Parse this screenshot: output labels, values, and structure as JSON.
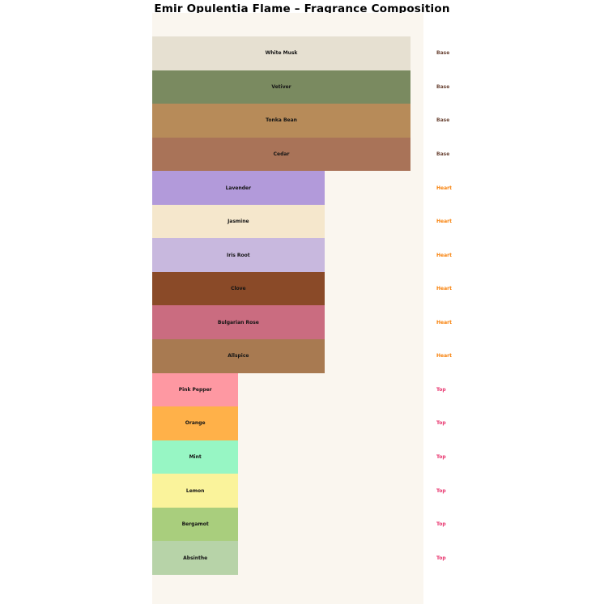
{
  "chart_data": {
    "type": "bar",
    "orientation": "horizontal",
    "title": "Emir Opulentia Flame – Fragrance Composition",
    "xlabel": "",
    "ylabel": "",
    "xlim": [
      0,
      3.15
    ],
    "grid": false,
    "legend": "none",
    "plot_background": "#FAF6EF",
    "figure_background": "#FFFFFF",
    "category_colors": {
      "Base": "#6B4536",
      "Heart": "#F8810A",
      "Top": "#E8336D"
    },
    "bars": [
      {
        "note": "White Musk",
        "category": "Base",
        "value": 3,
        "color": "#E6E0D1"
      },
      {
        "note": "Vetiver",
        "category": "Base",
        "value": 3,
        "color": "#7A8A60"
      },
      {
        "note": "Tonka Bean",
        "category": "Base",
        "value": 3,
        "color": "#B78B59"
      },
      {
        "note": "Cedar",
        "category": "Base",
        "value": 3,
        "color": "#A97358"
      },
      {
        "note": "Lavender",
        "category": "Heart",
        "value": 2,
        "color": "#B29ADA"
      },
      {
        "note": "Jasmine",
        "category": "Heart",
        "value": 2,
        "color": "#F5E7CC"
      },
      {
        "note": "Iris Root",
        "category": "Heart",
        "value": 2,
        "color": "#C8B8DE"
      },
      {
        "note": "Clove",
        "category": "Heart",
        "value": 2,
        "color": "#8A4A28"
      },
      {
        "note": "Bulgarian Rose",
        "category": "Heart",
        "value": 2,
        "color": "#CA6C80"
      },
      {
        "note": "Allspice",
        "category": "Heart",
        "value": 2,
        "color": "#A87A51"
      },
      {
        "note": "Pink Pepper",
        "category": "Top",
        "value": 1,
        "color": "#FE98A2"
      },
      {
        "note": "Orange",
        "category": "Top",
        "value": 1,
        "color": "#FFB149"
      },
      {
        "note": "Mint",
        "category": "Top",
        "value": 1,
        "color": "#97F6C4"
      },
      {
        "note": "Lemon",
        "category": "Top",
        "value": 1,
        "color": "#FAF39B"
      },
      {
        "note": "Bergamot",
        "category": "Top",
        "value": 1,
        "color": "#A9CE7D"
      },
      {
        "note": "Absinthe",
        "category": "Top",
        "value": 1,
        "color": "#B7D3A8"
      }
    ]
  }
}
